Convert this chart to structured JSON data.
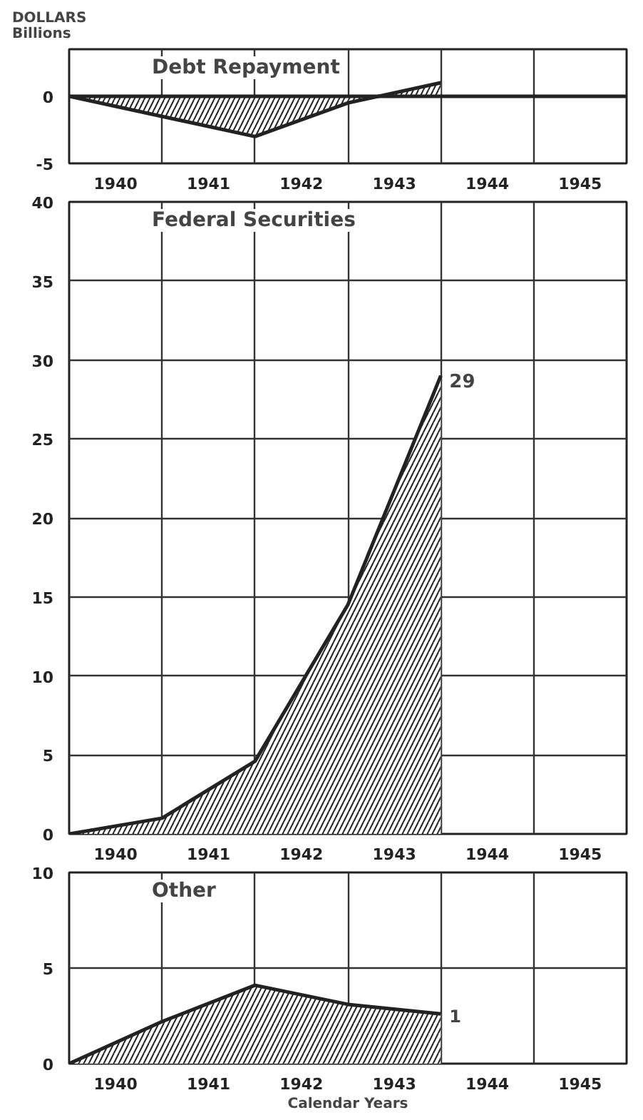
{
  "chart_data": [
    {
      "type": "area",
      "title": "Debt Repayment",
      "ylabel": "DOLLARS\nBillions",
      "x": [
        1940,
        1942,
        1943,
        1944
      ],
      "series": [
        {
          "color": "#222222",
          "values": [
            0,
            -3,
            -0.5,
            1
          ]
        }
      ],
      "xlim": [
        1940,
        1946
      ],
      "ylim": [
        -5,
        3.5
      ],
      "yticks": [
        -5,
        0
      ],
      "xticks": [
        {
          "value": 1940.5,
          "label": "1940"
        },
        {
          "value": 1941.5,
          "label": "1941"
        },
        {
          "value": 1942.5,
          "label": "1942"
        },
        {
          "value": 1943.5,
          "label": "1943"
        },
        {
          "value": 1944.5,
          "label": "1944"
        },
        {
          "value": 1945.5,
          "label": "1945"
        },
        {
          "value": 1941,
          "label": null
        },
        {
          "value": 1942,
          "label": null
        },
        {
          "value": 1943,
          "label": null
        },
        {
          "value": 1944,
          "label": null
        },
        {
          "value": 1945,
          "label": null
        }
      ],
      "ref_lines": [
        {
          "axis": "y",
          "value": 0,
          "color": "#222222"
        }
      ],
      "grid": "x"
    },
    {
      "type": "area",
      "title": "Federal Securities",
      "x": [
        1940,
        1941,
        1942,
        1943,
        1944
      ],
      "series": [
        {
          "color": "#222222",
          "values": [
            0,
            1,
            4.6,
            14.5,
            29
          ],
          "value_labels": [
            null,
            null,
            null,
            null,
            "29"
          ]
        }
      ],
      "xlim": [
        1940,
        1946
      ],
      "ylim": [
        0,
        40
      ],
      "yticks": [
        0,
        5,
        10,
        15,
        20,
        25,
        30,
        35,
        40
      ],
      "xticks": [
        {
          "value": 1940.5,
          "label": "1940"
        },
        {
          "value": 1941.5,
          "label": "1941"
        },
        {
          "value": 1942.5,
          "label": "1942"
        },
        {
          "value": 1943.5,
          "label": "1943"
        },
        {
          "value": 1944.5,
          "label": "1944"
        },
        {
          "value": 1945.5,
          "label": "1945"
        },
        {
          "value": 1941,
          "label": null
        },
        {
          "value": 1942,
          "label": null
        },
        {
          "value": 1943,
          "label": null
        },
        {
          "value": 1944,
          "label": null
        },
        {
          "value": 1945,
          "label": null
        }
      ],
      "grid": true
    },
    {
      "type": "area",
      "title": "Other",
      "xlabel": "Calendar Years",
      "x": [
        1940,
        1941,
        1942,
        1943,
        1944
      ],
      "series": [
        {
          "color": "#222222",
          "values": [
            0,
            2.2,
            4.1,
            3.1,
            2.6
          ]
        }
      ],
      "xlim": [
        1940,
        1946
      ],
      "ylim": [
        0,
        10
      ],
      "yticks": [
        0,
        5,
        10
      ],
      "xticks": [
        {
          "value": 1940.5,
          "label": "1940"
        },
        {
          "value": 1941.5,
          "label": "1941"
        },
        {
          "value": 1942.5,
          "label": "1942"
        },
        {
          "value": 1943.5,
          "label": "1943"
        },
        {
          "value": 1944.5,
          "label": "1944"
        },
        {
          "value": 1945.5,
          "label": "1945"
        },
        {
          "value": 1941,
          "label": null
        },
        {
          "value": 1942,
          "label": null
        },
        {
          "value": 1943,
          "label": null
        },
        {
          "value": 1944,
          "label": null
        },
        {
          "value": 1945,
          "label": null
        }
      ],
      "annotations": [
        {
          "text": "1",
          "x": 1944,
          "y": 2.6
        }
      ],
      "grid": true
    }
  ]
}
